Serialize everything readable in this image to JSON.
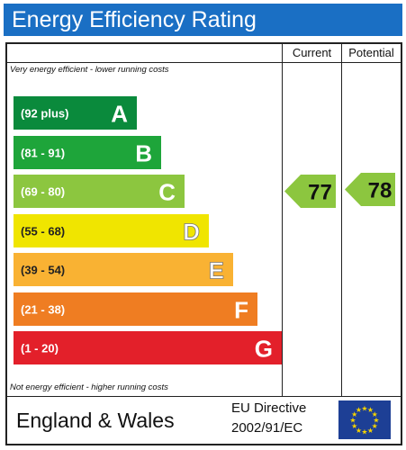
{
  "header": {
    "title": "Energy Efficiency Rating"
  },
  "columns": {
    "current": "Current",
    "potential": "Potential"
  },
  "notes": {
    "top": "Very energy efficient - lower running costs",
    "bottom": "Not energy efficient - higher running costs"
  },
  "footer": {
    "country": "England & Wales",
    "directive_line1": "EU Directive",
    "directive_line2": "2002/91/EC"
  },
  "chart_data": {
    "type": "bar",
    "title": "Energy Efficiency Rating",
    "bands": [
      {
        "range": "(92 plus)",
        "letter": "A",
        "color": "#0a8a3c"
      },
      {
        "range": "(81 - 91)",
        "letter": "B",
        "color": "#1ea53a"
      },
      {
        "range": "(69 - 80)",
        "letter": "C",
        "color": "#8cc63f"
      },
      {
        "range": "(55 - 68)",
        "letter": "D",
        "color": "#f0e500"
      },
      {
        "range": "(39 - 54)",
        "letter": "E",
        "color": "#f9b233"
      },
      {
        "range": "(21 - 38)",
        "letter": "F",
        "color": "#ef7d22"
      },
      {
        "range": "(1 - 20)",
        "letter": "G",
        "color": "#e3202a"
      }
    ],
    "current": {
      "value": 77,
      "band": "C",
      "color": "#8cc63f"
    },
    "potential": {
      "value": 78,
      "band": "C",
      "color": "#8cc63f"
    }
  }
}
